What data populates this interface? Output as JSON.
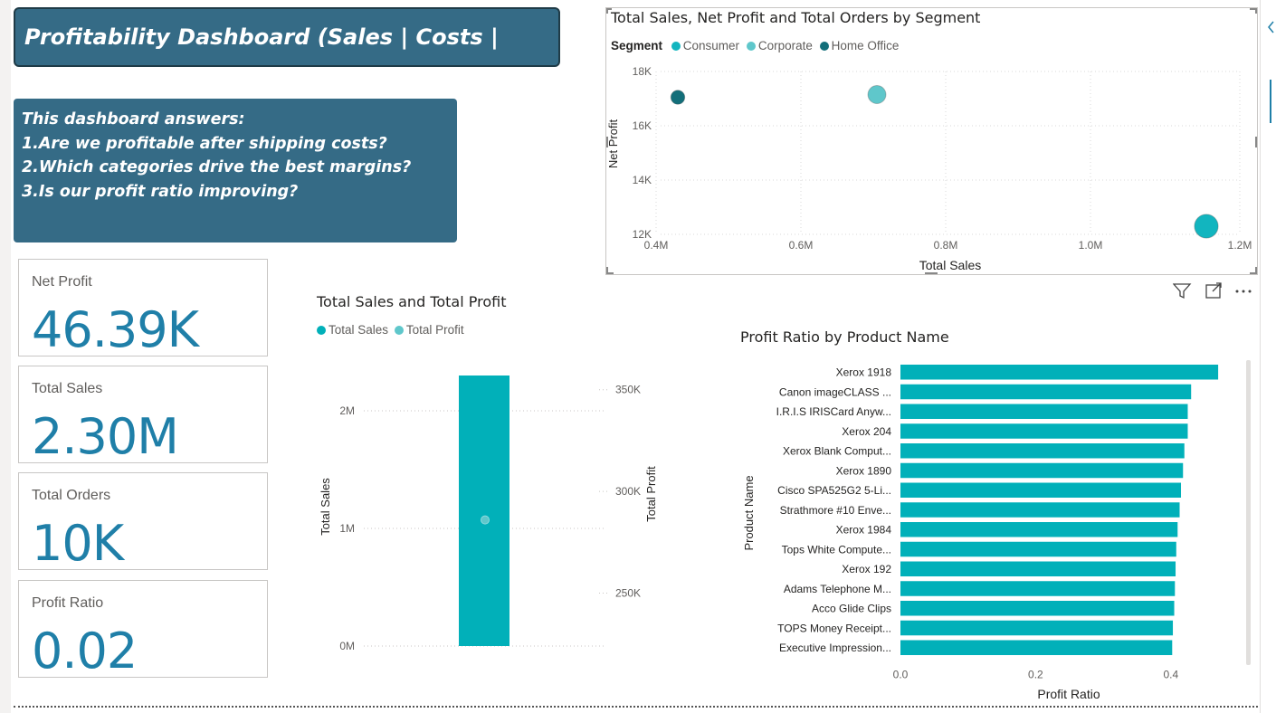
{
  "title": "Profitability Dashboard (Sales | Costs | Margins)",
  "info": {
    "heading": "This dashboard answers:",
    "q1": "1.Are we profitable after shipping costs?",
    "q2": "2.Which categories drive the best margins?",
    "q3": "3.Is our profit ratio improving?"
  },
  "kpis": [
    {
      "label": "Net Profit",
      "value": "46.39K"
    },
    {
      "label": "Total Sales",
      "value": "2.30M"
    },
    {
      "label": "Total Orders",
      "value": "10K"
    },
    {
      "label": "Profit Ratio",
      "value": "0.02"
    }
  ],
  "scatter": {
    "title": "Total Sales, Net Profit and Total Orders by Segment",
    "legend_title": "Segment",
    "xlabel": "Total Sales",
    "ylabel": "Net Profit",
    "x_ticks": [
      "0.4M",
      "0.6M",
      "0.8M",
      "1.0M",
      "1.2M"
    ],
    "y_ticks": [
      "18K",
      "16K",
      "14K",
      "12K"
    ]
  },
  "combo": {
    "title": "Total Sales and Total Profit",
    "legend": [
      "Total Sales",
      "Total Profit"
    ],
    "ylabel_left": "Total Sales",
    "ylabel_right": "Total Profit",
    "left_ticks": [
      "2M",
      "1M",
      "0M"
    ],
    "right_ticks": [
      "350K",
      "300K",
      "250K"
    ]
  },
  "bars": {
    "title": "Profit Ratio by Product Name",
    "xlabel": "Profit Ratio",
    "ylabel": "Product Name",
    "x_ticks": [
      "0.0",
      "0.2",
      "0.4"
    ]
  },
  "colors": {
    "consumer": "#12b5bf",
    "corporate": "#5fc7cb",
    "home_office": "#136f7a",
    "bar": "#01b0b9",
    "header_bg": "#356b86"
  },
  "chart_data": [
    {
      "type": "scatter",
      "title": "Total Sales, Net Profit and Total Orders by Segment",
      "xlabel": "Total Sales",
      "ylabel": "Net Profit",
      "xlim": [
        380000,
        1240000
      ],
      "ylim": [
        12000,
        18000
      ],
      "series": [
        {
          "name": "Consumer",
          "x": [
            1160000
          ],
          "y": [
            12300
          ],
          "size": [
            5200
          ]
        },
        {
          "name": "Corporate",
          "x": [
            705000
          ],
          "y": [
            17150
          ],
          "size": [
            3000
          ]
        },
        {
          "name": "Home Office",
          "x": [
            430000
          ],
          "y": [
            17050
          ],
          "size": [
            1800
          ]
        }
      ],
      "legend": "top-left",
      "grid": true
    },
    {
      "type": "bar",
      "title": "Total Sales and Total Profit",
      "categories": [
        ""
      ],
      "series": [
        {
          "name": "Total Sales",
          "values": [
            2300000
          ],
          "axis": "left"
        },
        {
          "name": "Total Profit",
          "values": [
            286000
          ],
          "axis": "right"
        }
      ],
      "ylim_left": [
        0,
        2300000
      ],
      "ylim_right": [
        224000,
        357000
      ],
      "legend": "top-left",
      "grid": true
    },
    {
      "type": "bar",
      "orientation": "horizontal",
      "title": "Profit Ratio by Product Name",
      "xlabel": "Profit Ratio",
      "ylabel": "Product Name",
      "categories": [
        "Xerox 1918",
        "Canon imageCLASS ...",
        "I.R.I.S IRISCard Anyw...",
        "Xerox 204",
        "Xerox Blank Comput...",
        "Xerox 1890",
        "Cisco SPA525G2 5-Li...",
        "Strathmore #10 Enve...",
        "Xerox 1984",
        "Tops White Compute...",
        "Xerox 192",
        "Adams Telephone M...",
        "Acco Glide Clips",
        "TOPS Money Receipt...",
        "Executive Impression..."
      ],
      "values": [
        0.47,
        0.43,
        0.425,
        0.425,
        0.42,
        0.418,
        0.415,
        0.413,
        0.41,
        0.408,
        0.407,
        0.406,
        0.405,
        0.403,
        0.402
      ],
      "xlim": [
        0,
        0.5
      ]
    }
  ]
}
